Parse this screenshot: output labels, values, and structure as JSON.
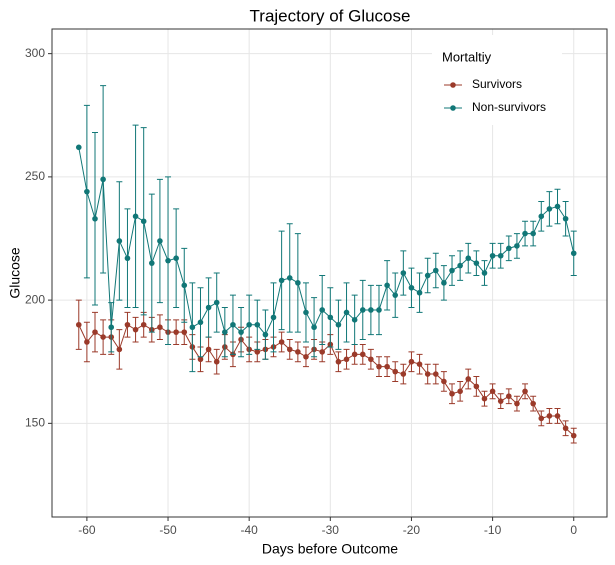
{
  "chart_data": {
    "type": "line",
    "title": "Trajectory of Glucose",
    "x_label": "Days before Outcome",
    "y_label": "Glucose",
    "legend_title": "Mortaltiy",
    "legend_position": "top-right",
    "grid": true,
    "x": [
      -61,
      -60,
      -59,
      -58,
      -57,
      -56,
      -55,
      -54,
      -53,
      -52,
      -51,
      -50,
      -49,
      -48,
      -47,
      -46,
      -45,
      -44,
      -43,
      -42,
      -41,
      -40,
      -39,
      -38,
      -37,
      -36,
      -35,
      -34,
      -33,
      -32,
      -31,
      -30,
      -29,
      -28,
      -27,
      -26,
      -25,
      -24,
      -23,
      -22,
      -21,
      -20,
      -19,
      -18,
      -17,
      -16,
      -15,
      -14,
      -13,
      -12,
      -11,
      -10,
      -9,
      -8,
      -7,
      -6,
      -5,
      -4,
      -3,
      -2,
      -1,
      0
    ],
    "xlim": [
      -64.3,
      4.1
    ],
    "xticks": [
      -60,
      -50,
      -40,
      -30,
      -20,
      -10,
      0
    ],
    "ylim": [
      112,
      310
    ],
    "yticks": [
      150,
      200,
      250,
      300
    ],
    "series": [
      {
        "name": "Survivors",
        "color": "#9b3a2a",
        "values": [
          190,
          183,
          187,
          185,
          185,
          180,
          190,
          188,
          190,
          188,
          189,
          187,
          187,
          187,
          181,
          176,
          180,
          175,
          181,
          178,
          184,
          180,
          179,
          180,
          181,
          183,
          180,
          179,
          177,
          180,
          179,
          182,
          175,
          176,
          178,
          178,
          176,
          173,
          173,
          171,
          170,
          175,
          174,
          170,
          170,
          167,
          162,
          163,
          168,
          165,
          160,
          163,
          159,
          161,
          158,
          163,
          158,
          152,
          153,
          153,
          148,
          145
        ],
        "errors": [
          10,
          8,
          8,
          7,
          7,
          8,
          5,
          5,
          5,
          5,
          5,
          5,
          5,
          5,
          5,
          5,
          5,
          5,
          5,
          5,
          5,
          5,
          4,
          4,
          4,
          4,
          4,
          4,
          4,
          4,
          4,
          4,
          4,
          4,
          4,
          4,
          4,
          4,
          4,
          4,
          4,
          4,
          4,
          4,
          4,
          4,
          4,
          4,
          4,
          4,
          3,
          3,
          3,
          3,
          3,
          3,
          3,
          3,
          3,
          3,
          3,
          3
        ]
      },
      {
        "name": "Non-survivors",
        "color": "#117777",
        "values": [
          262,
          244,
          233,
          249,
          189,
          224,
          217,
          234,
          232,
          215,
          224,
          216,
          217,
          206,
          189,
          191,
          197,
          199,
          187,
          190,
          187,
          190,
          190,
          186,
          193,
          208,
          209,
          207,
          195,
          189,
          196,
          193,
          190,
          195,
          192,
          196,
          196,
          196,
          206,
          202,
          211,
          205,
          203,
          210,
          212,
          207,
          212,
          214,
          217,
          215,
          211,
          218,
          218,
          221,
          222,
          227,
          227,
          234,
          237,
          238,
          233,
          219
        ],
        "errors": [
          null,
          35,
          35,
          38,
          10,
          24,
          20,
          37,
          38,
          28,
          25,
          34,
          20,
          15,
          18,
          14,
          12,
          12,
          10,
          12,
          10,
          12,
          10,
          10,
          14,
          20,
          22,
          20,
          12,
          12,
          14,
          12,
          10,
          12,
          10,
          12,
          10,
          10,
          10,
          9,
          9,
          8,
          8,
          7,
          7,
          7,
          6,
          6,
          6,
          5,
          5,
          5,
          5,
          5,
          5,
          5,
          5,
          6,
          7,
          7,
          7,
          9
        ]
      }
    ]
  }
}
